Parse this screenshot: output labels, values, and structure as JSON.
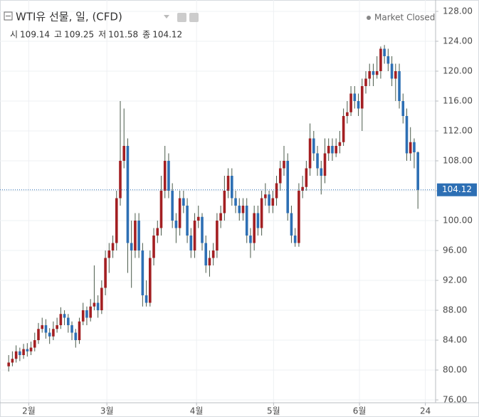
{
  "chart_data": {
    "type": "candlestick",
    "title": "WTI유 선물, 일, (CFD)",
    "status": "Market Closed",
    "ohlc_labels": [
      "시",
      "고",
      "저",
      "종"
    ],
    "up_color": "#a31f22",
    "down_color": "#2d6fb4",
    "grid": true,
    "open": [
      80.5,
      81,
      81.5,
      82.5,
      82,
      82.8,
      82.5,
      83,
      84,
      85.5,
      86,
      85,
      84.5,
      85.5,
      86,
      87.5,
      87,
      86,
      85,
      84,
      86.5,
      88,
      87,
      88.5,
      89,
      88,
      91,
      95,
      96,
      97,
      103,
      108,
      110,
      97,
      96,
      100,
      96,
      90,
      89,
      95,
      98,
      99,
      104,
      108,
      104,
      100,
      99,
      103,
      102,
      98,
      96,
      100,
      100.5,
      97,
      94,
      95,
      96,
      100,
      101,
      104,
      106,
      103,
      102,
      101,
      102,
      98,
      97,
      101,
      99,
      103,
      103.5,
      102,
      103,
      105,
      107,
      108,
      101,
      98,
      97,
      104,
      104.5,
      107,
      111,
      109,
      107,
      106,
      109,
      110,
      109,
      110,
      110.5,
      114,
      114.5,
      117,
      116,
      115,
      118,
      119,
      120,
      119.5,
      120,
      123,
      122,
      121,
      119,
      120,
      116,
      114,
      109,
      110.5,
      109.14
    ],
    "high": [
      82,
      82.5,
      83.3,
      83,
      83.5,
      83.6,
      83.8,
      85,
      86.3,
      87,
      86.8,
      85.6,
      86.5,
      87,
      88.4,
      88,
      87.5,
      86.5,
      85.5,
      87,
      89,
      88.5,
      89.5,
      94,
      90,
      92,
      96,
      97,
      98,
      104,
      116,
      115,
      111,
      100,
      101,
      101,
      97,
      92,
      96,
      99,
      100,
      106,
      110,
      109,
      105,
      101,
      104,
      104,
      103,
      99,
      101,
      102,
      101,
      98,
      96,
      97,
      101,
      102,
      106,
      107,
      107,
      104,
      103,
      103,
      103,
      99,
      102,
      102,
      104,
      105,
      104,
      104,
      106,
      108,
      110,
      109,
      102,
      99,
      105,
      106,
      108,
      113,
      112,
      110,
      108,
      111,
      111,
      111,
      111,
      112,
      115,
      116,
      118,
      118,
      117,
      119,
      120,
      121,
      121,
      122,
      123.3,
      123.5,
      123,
      122,
      121,
      121,
      117,
      115,
      112.5,
      111,
      109.25
    ],
    "low": [
      79.8,
      80.5,
      81,
      81.2,
      81.5,
      81.8,
      82,
      82.5,
      83.5,
      85,
      84.2,
      83.5,
      84,
      85,
      85.5,
      86,
      85,
      84,
      83,
      83.5,
      86,
      86,
      86.5,
      88,
      87,
      87.5,
      90,
      93,
      95,
      96,
      102,
      107,
      93,
      91,
      95,
      95,
      88.5,
      88.5,
      88.5,
      94,
      97,
      98,
      103,
      103,
      99,
      97,
      98,
      101,
      97,
      95,
      95,
      99,
      96,
      93,
      92.5,
      94,
      95,
      99,
      100,
      103,
      102,
      101,
      100,
      100,
      97,
      95,
      96,
      98,
      98,
      102,
      101,
      101,
      102,
      104,
      106,
      100,
      97,
      96.5,
      96.5,
      103,
      104,
      106,
      108,
      106,
      103.5,
      105,
      108,
      108,
      108.5,
      109,
      110,
      113,
      114,
      115,
      114,
      112,
      117,
      118,
      118,
      119,
      119,
      121,
      120,
      118,
      116,
      115,
      113,
      108,
      108,
      107,
      101.58
    ],
    "close": [
      81,
      81.5,
      82.5,
      82,
      82.8,
      82.5,
      83,
      84,
      85.5,
      86,
      85,
      84.5,
      85.5,
      86,
      87.5,
      87,
      86,
      85,
      84,
      86.5,
      88,
      87,
      88.5,
      89,
      88,
      91,
      95,
      96,
      97,
      103,
      108,
      110,
      97,
      96,
      100,
      96,
      90,
      89,
      95,
      98,
      99,
      104,
      108,
      104,
      100,
      99,
      103,
      102,
      98,
      96,
      100,
      100.5,
      97,
      94,
      95,
      96,
      100,
      101,
      104,
      106,
      103,
      102,
      101,
      102,
      98,
      97,
      101,
      99,
      103,
      103.5,
      102,
      103,
      105,
      107,
      108,
      101,
      98,
      97,
      104,
      104.5,
      107,
      111,
      109,
      107,
      106,
      109,
      110,
      109,
      110,
      110.5,
      114,
      114.5,
      117,
      116,
      115,
      118,
      119,
      120,
      119.5,
      120,
      123,
      122,
      121,
      119,
      120,
      116,
      114,
      109,
      110.5,
      109.14,
      104.12
    ],
    "xlim": [
      -0.8,
      114.75
    ],
    "xticks": [
      {
        "value": 5.4,
        "label": "2월"
      },
      {
        "value": 26.4,
        "label": "3월"
      },
      {
        "value": 50.5,
        "label": "4월"
      },
      {
        "value": 71.2,
        "label": "5월"
      },
      {
        "value": 94.3,
        "label": "6월"
      },
      {
        "value": 112,
        "label": "24"
      }
    ],
    "ylim": [
      76,
      128
    ],
    "yticks": [
      {
        "value": 76,
        "label": "76.00"
      },
      {
        "value": 80,
        "label": "80.00"
      },
      {
        "value": 84,
        "label": "84.00"
      },
      {
        "value": 88,
        "label": "88.00"
      },
      {
        "value": 92,
        "label": "92.00"
      },
      {
        "value": 96,
        "label": "96.00"
      },
      {
        "value": 100,
        "label": "100.00"
      },
      {
        "value": 104,
        "label": "104.00"
      },
      {
        "value": 108,
        "label": "108.00"
      },
      {
        "value": 112,
        "label": "112.00"
      },
      {
        "value": 116,
        "label": "116.00"
      },
      {
        "value": 120,
        "label": "120.00"
      },
      {
        "value": 124,
        "label": "124.00"
      },
      {
        "value": 128,
        "label": "128.00"
      }
    ]
  }
}
